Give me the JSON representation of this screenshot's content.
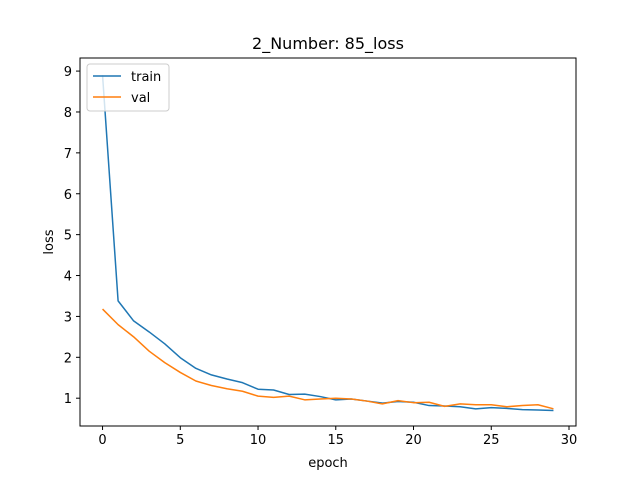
{
  "chart_data": {
    "type": "line",
    "title": "2_Number: 85_loss",
    "xlabel": "epoch",
    "ylabel": "loss",
    "xlim": [
      -1.45,
      30.45
    ],
    "ylim": [
      0.32,
      9.32
    ],
    "xticks": [
      0,
      5,
      10,
      15,
      20,
      25,
      30
    ],
    "yticks": [
      1,
      2,
      3,
      4,
      5,
      6,
      7,
      8,
      9
    ],
    "grid": false,
    "legend_position": "top-left",
    "x": [
      0,
      1,
      2,
      3,
      4,
      5,
      6,
      7,
      8,
      9,
      10,
      11,
      12,
      13,
      14,
      15,
      16,
      17,
      18,
      19,
      20,
      21,
      22,
      23,
      24,
      25,
      26,
      27,
      28,
      29
    ],
    "series": [
      {
        "name": "train",
        "color": "#1f77b4",
        "values": [
          8.9,
          3.38,
          2.89,
          2.62,
          2.33,
          1.99,
          1.73,
          1.57,
          1.47,
          1.38,
          1.22,
          1.2,
          1.09,
          1.1,
          1.04,
          0.96,
          0.98,
          0.93,
          0.88,
          0.92,
          0.9,
          0.82,
          0.81,
          0.79,
          0.74,
          0.77,
          0.75,
          0.72,
          0.71,
          0.7
        ]
      },
      {
        "name": "val",
        "color": "#ff7f0e",
        "values": [
          3.18,
          2.8,
          2.5,
          2.15,
          1.87,
          1.63,
          1.42,
          1.31,
          1.23,
          1.17,
          1.05,
          1.02,
          1.05,
          0.96,
          0.98,
          1.0,
          0.98,
          0.93,
          0.86,
          0.94,
          0.89,
          0.9,
          0.8,
          0.86,
          0.84,
          0.84,
          0.79,
          0.82,
          0.84,
          0.74
        ]
      }
    ]
  }
}
